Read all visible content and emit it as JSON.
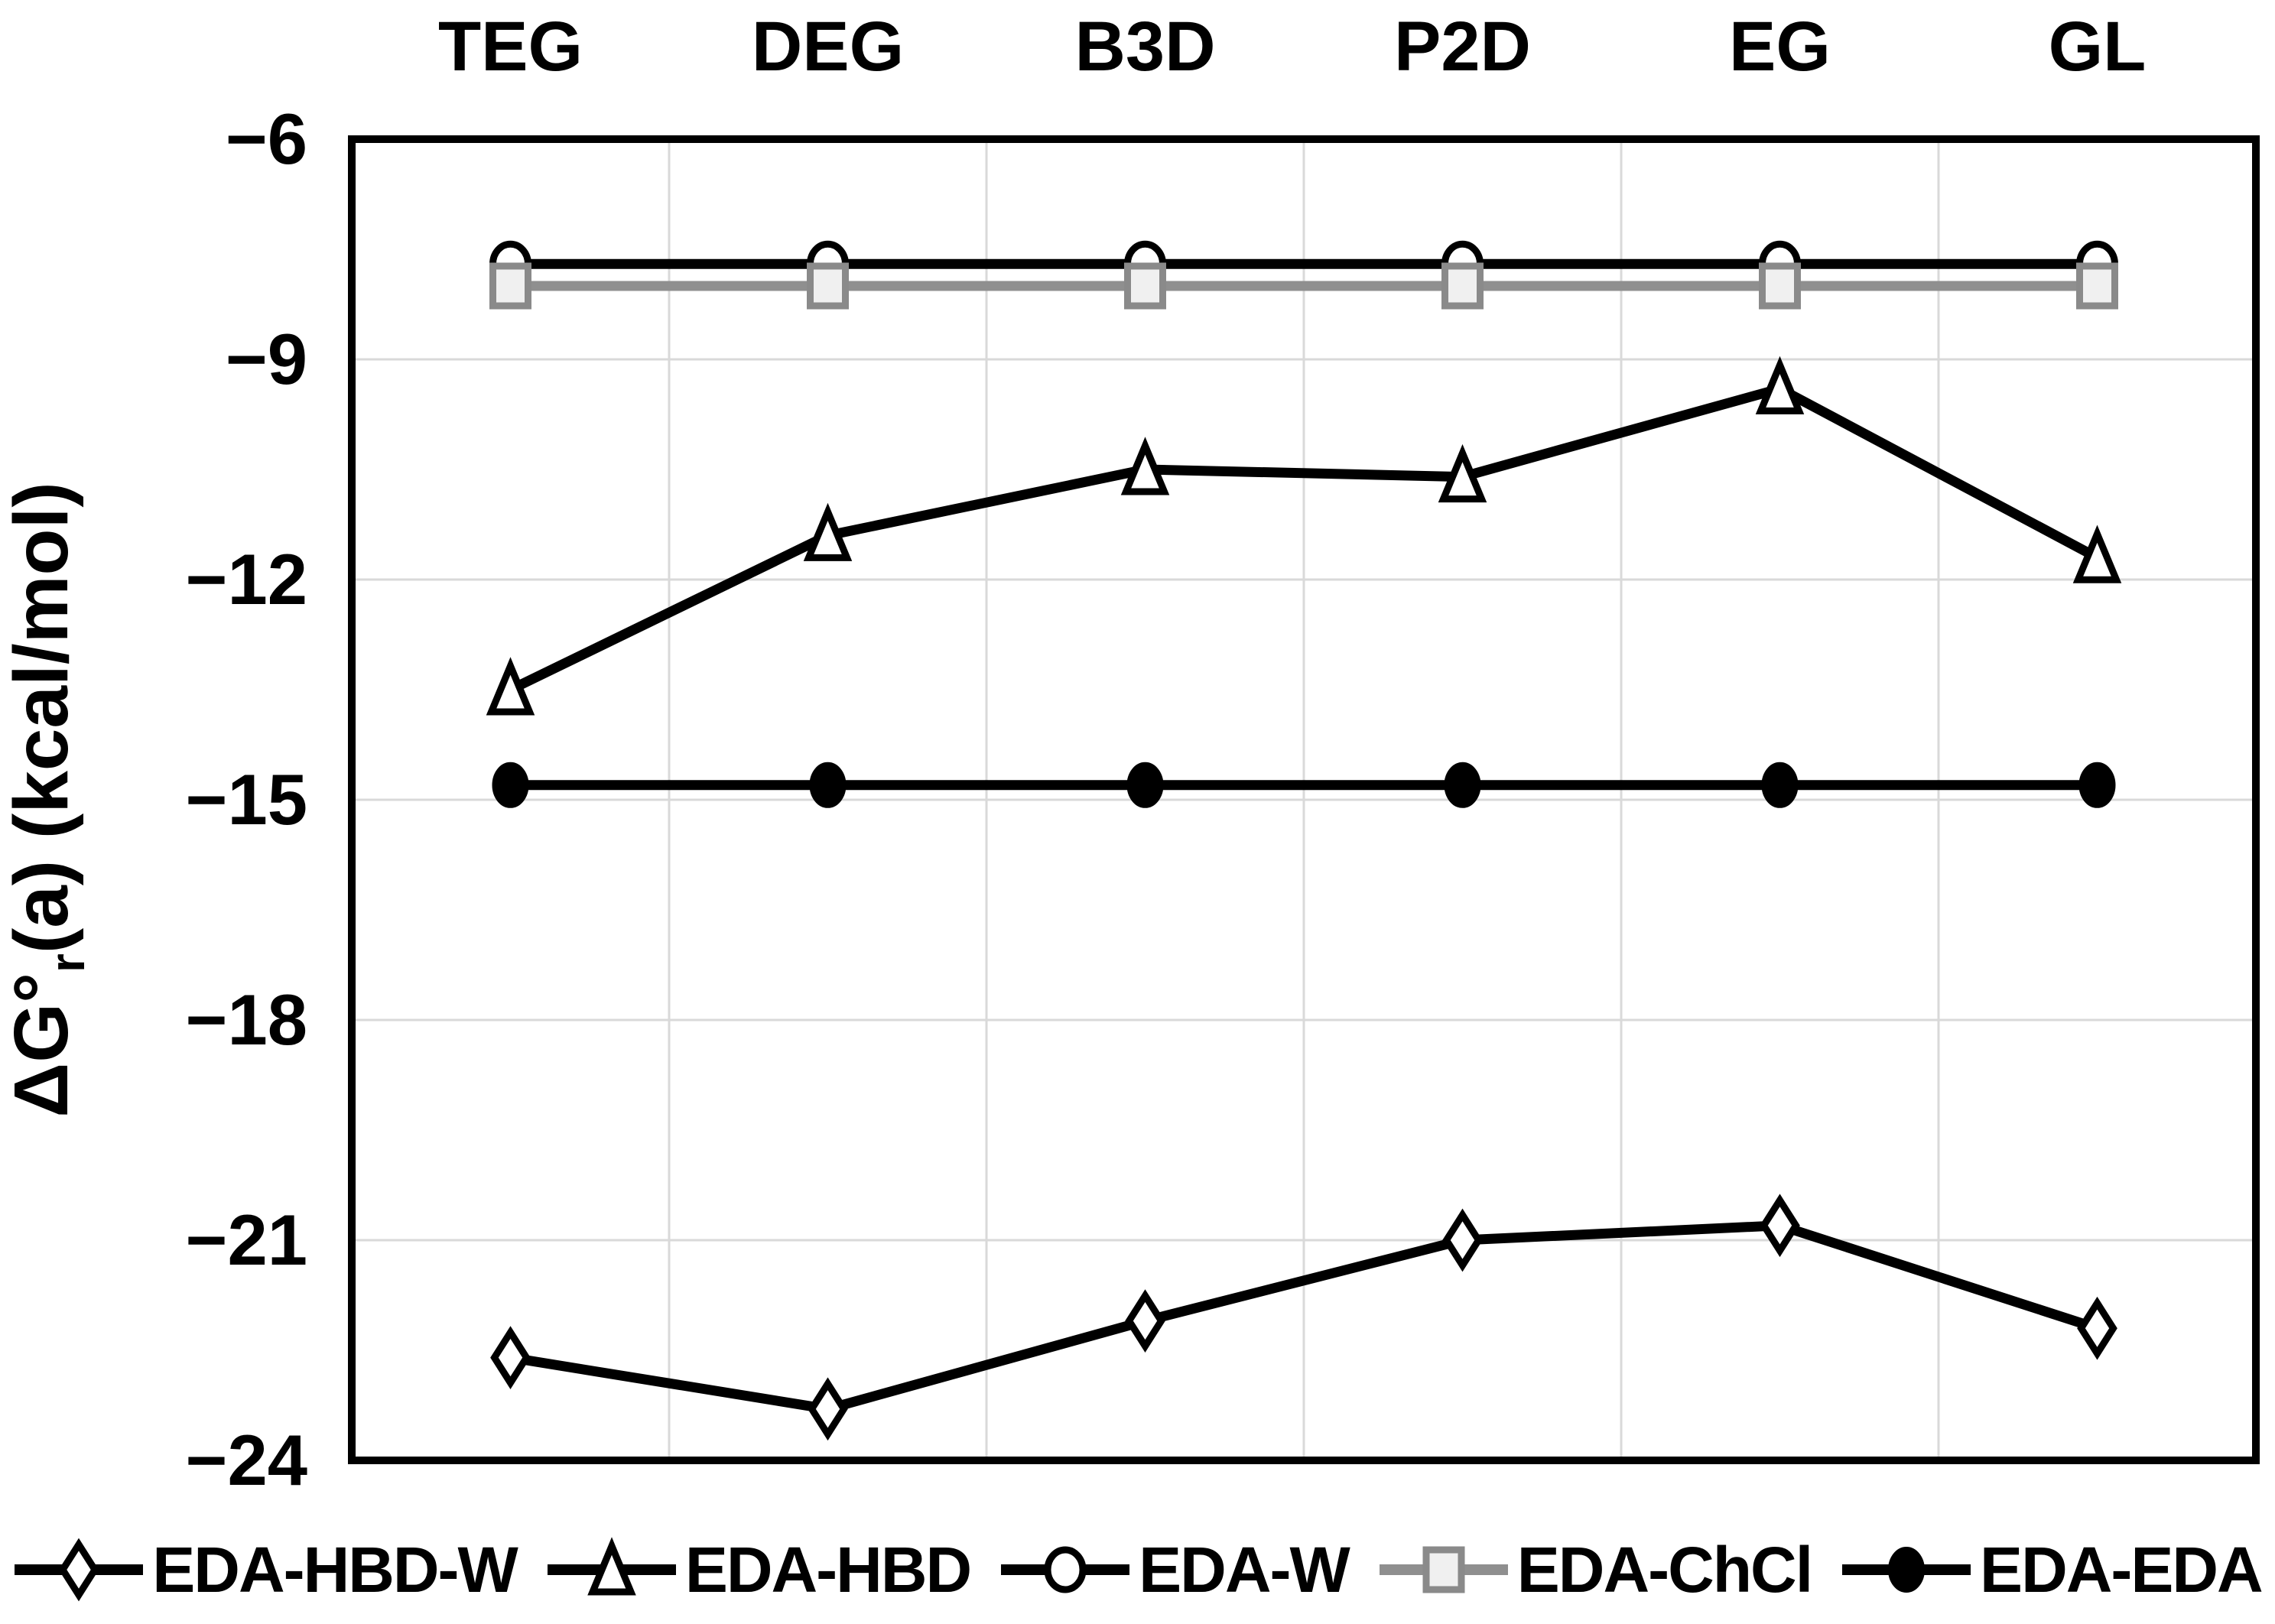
{
  "figure": {
    "background": "#ffffff",
    "text_color": "#000000",
    "gridline_color": "#d9d9d9",
    "axis_color": "#000000"
  },
  "axis": {
    "y_label_parts": {
      "main": "ΔG°",
      "sub": "r",
      "rest": "(a) (kcal/mol)"
    },
    "y_tick_labels": [
      "−6",
      "−9",
      "−12",
      "−15",
      "−18",
      "−21",
      "−24"
    ]
  },
  "chart_data": {
    "type": "line",
    "title": "",
    "xlabel": "",
    "ylabel": "ΔG°r(a) (kcal/mol)",
    "categories": [
      "TEG",
      "DEG",
      "B3D",
      "P2D",
      "EG",
      "GL"
    ],
    "series": [
      {
        "name": "EDA-HBD-W",
        "marker": "diamond",
        "line_color": "#000000",
        "marker_fill": "#ffffff",
        "marker_edge": "#000000",
        "values": [
          -22.6,
          -23.3,
          -22.1,
          -21.0,
          -20.8,
          -22.2
        ]
      },
      {
        "name": "EDA-HBD",
        "marker": "triangle",
        "line_color": "#000000",
        "marker_fill": "#ffffff",
        "marker_edge": "#000000",
        "values": [
          -13.5,
          -11.4,
          -10.5,
          -10.6,
          -9.4,
          -11.7
        ]
      },
      {
        "name": "EDA-W",
        "marker": "circle",
        "line_color": "#000000",
        "marker_fill": "#ffffff",
        "marker_edge": "#000000",
        "values": [
          -7.7,
          -7.7,
          -7.7,
          -7.7,
          -7.7,
          -7.7
        ]
      },
      {
        "name": "EDA-ChCl",
        "marker": "square",
        "line_color": "#8f8f8f",
        "marker_fill": "#f0f0f0",
        "marker_edge": "#8a8a8a",
        "values": [
          -8.0,
          -8.0,
          -8.0,
          -8.0,
          -8.0,
          -8.0
        ]
      },
      {
        "name": "EDA-EDA",
        "marker": "circle_filled",
        "line_color": "#000000",
        "marker_fill": "#000000",
        "marker_edge": "#000000",
        "values": [
          -14.8,
          -14.8,
          -14.8,
          -14.8,
          -14.8,
          -14.8
        ]
      }
    ],
    "ylim": [
      -24,
      -6
    ],
    "yticks": [
      -6,
      -9,
      -12,
      -15,
      -18,
      -21,
      -24
    ],
    "grid": true,
    "legend_position": "bottom"
  }
}
